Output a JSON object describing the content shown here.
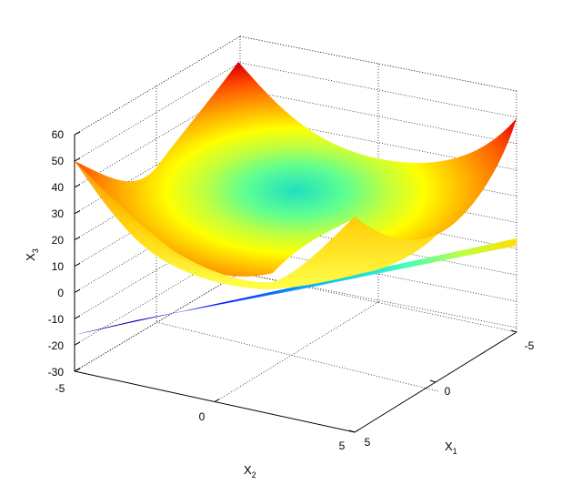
{
  "chart_data": {
    "type": "surface3d",
    "title": "",
    "xlabel": {
      "base": "X",
      "sub": "1"
    },
    "ylabel": {
      "base": "X",
      "sub": "2"
    },
    "zlabel": {
      "base": "X",
      "sub": "3"
    },
    "x1_ticks": [
      "-5",
      "0",
      "5"
    ],
    "x2_ticks": [
      "-5",
      "0",
      "5"
    ],
    "x3_ticks": [
      "-30",
      "-20",
      "-10",
      "0",
      "10",
      "20",
      "30",
      "40",
      "50",
      "60"
    ],
    "xlim": [
      -5,
      5
    ],
    "ylim": [
      -5,
      5
    ],
    "zlim": [
      -30,
      60
    ],
    "grid": true,
    "colormap": "jet",
    "series": [
      {
        "surface": "paraboloid",
        "formula": "X3 = X1^2 + X2^2",
        "z_min": 0,
        "z_max": 50
      },
      {
        "surface": "plane",
        "z_min": -15,
        "z_max": 20
      }
    ]
  }
}
